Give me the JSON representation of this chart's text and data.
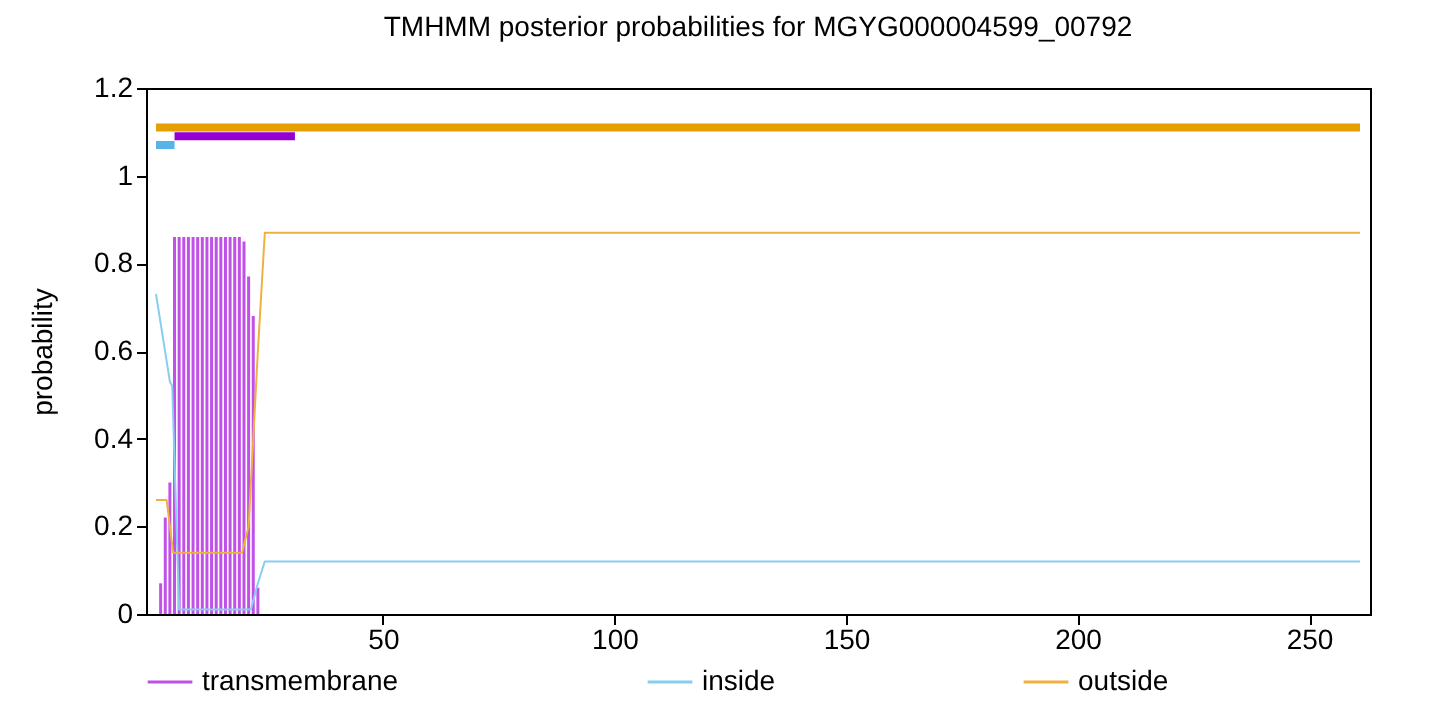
{
  "chart_data": {
    "type": "line",
    "title": "TMHMM posterior probabilities for MGYG000004599_00792",
    "ylabel": "probability",
    "xlim": [
      1,
      261
    ],
    "xticks": [
      50,
      100,
      150,
      200,
      250
    ],
    "ylim": [
      0,
      1.2
    ],
    "yticks": [
      0,
      0.2,
      0.4,
      0.6,
      0.8,
      1,
      1.2
    ],
    "grid": false,
    "legend": "bottom",
    "series": [
      {
        "name": "transmembrane",
        "type": "bar",
        "color": "#c050e8",
        "x": [
          2,
          3,
          4,
          5,
          6,
          7,
          8,
          9,
          10,
          11,
          12,
          13,
          14,
          15,
          16,
          17,
          18,
          19,
          20,
          21,
          22,
          23
        ],
        "values": [
          0.07,
          0.22,
          0.3,
          0.86,
          0.86,
          0.86,
          0.86,
          0.86,
          0.86,
          0.86,
          0.86,
          0.86,
          0.86,
          0.86,
          0.86,
          0.86,
          0.86,
          0.86,
          0.85,
          0.77,
          0.68,
          0.06
        ]
      },
      {
        "name": "inside",
        "color": "#87cef0",
        "x": [
          1,
          4,
          4.5,
          6,
          21.5,
          23,
          24.5,
          261
        ],
        "values": [
          0.73,
          0.53,
          0.52,
          0.01,
          0.01,
          0.07,
          0.12,
          0.12
        ]
      },
      {
        "name": "outside",
        "color": "#f0b040",
        "x": [
          1,
          3.3,
          4.7,
          19.6,
          21,
          23,
          24.5,
          261
        ],
        "values": [
          0.26,
          0.26,
          0.14,
          0.14,
          0.2,
          0.6,
          0.87,
          0.87
        ]
      },
      {
        "color": "#56b4e9",
        "x": [
          1,
          5
        ],
        "values": [
          1.07,
          1.07
        ]
      },
      {
        "color": "#9400d3",
        "x": [
          5,
          31
        ],
        "values": [
          1.09,
          1.09
        ]
      },
      {
        "color": "#e69f00",
        "x": [
          1,
          261
        ],
        "values": [
          1.11,
          1.11
        ]
      }
    ]
  }
}
